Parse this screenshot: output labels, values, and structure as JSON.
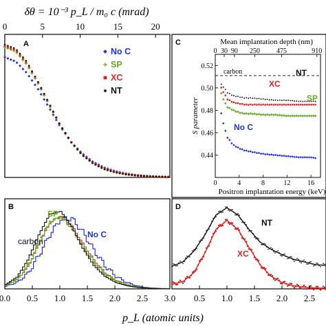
{
  "figure": {
    "top_axis_title": "δθ = 10⁻³ p_L / m₀ c (mrad)",
    "bottom_axis_title": "p_L (atomic units)"
  },
  "colors": {
    "noC": "#2233dd",
    "SP": "#66aa22",
    "XC": "#dd2222",
    "NT": "#111111",
    "carbon": "#111111"
  },
  "chart_data": [
    {
      "panel": "A",
      "type": "scatter",
      "xlabel": "p_L (atomic units)",
      "xlim": [
        0,
        3.0
      ],
      "top_axis_label": "δθ = 10⁻³ p_L / m₀ c (mrad)",
      "top_xlim": [
        0,
        21.9
      ],
      "top_ticks": [
        "0",
        "5",
        "10",
        "15",
        "20"
      ],
      "legend": [
        "No C",
        "SP",
        "XC",
        "NT"
      ],
      "legend_position": "top-right",
      "x": [
        0,
        0.2,
        0.4,
        0.6,
        0.8,
        1.0,
        1.2,
        1.4,
        1.6,
        1.8,
        2.0,
        2.2,
        2.4,
        2.6,
        2.8,
        3.0
      ],
      "series": [
        {
          "name": "No C",
          "values": [
            0.84,
            0.81,
            0.73,
            0.62,
            0.49,
            0.36,
            0.25,
            0.17,
            0.11,
            0.07,
            0.045,
            0.028,
            0.017,
            0.01,
            0.006,
            0.004
          ]
        },
        {
          "name": "SP",
          "values": [
            0.91,
            0.88,
            0.79,
            0.66,
            0.51,
            0.37,
            0.25,
            0.16,
            0.1,
            0.06,
            0.038,
            0.023,
            0.014,
            0.008,
            0.005,
            0.003
          ]
        },
        {
          "name": "XC",
          "values": [
            0.92,
            0.89,
            0.8,
            0.67,
            0.52,
            0.37,
            0.25,
            0.16,
            0.1,
            0.06,
            0.037,
            0.022,
            0.013,
            0.008,
            0.005,
            0.003
          ]
        },
        {
          "name": "NT",
          "values": [
            0.93,
            0.9,
            0.81,
            0.67,
            0.52,
            0.37,
            0.25,
            0.16,
            0.1,
            0.06,
            0.036,
            0.021,
            0.013,
            0.008,
            0.005,
            0.003
          ]
        }
      ]
    },
    {
      "panel": "B",
      "type": "line",
      "xlim": [
        0,
        3.0
      ],
      "xticks": [
        "0.0",
        "0.5",
        "1.0",
        "1.5",
        "2.0",
        "2.5",
        "3.0"
      ],
      "annotations": [
        "carbon",
        "SP",
        "No C"
      ],
      "x": [
        0,
        0.2,
        0.4,
        0.6,
        0.8,
        1.0,
        1.2,
        1.4,
        1.6,
        1.8,
        2.0,
        2.2,
        2.4,
        2.6,
        2.8,
        3.0
      ],
      "series": [
        {
          "name": "carbon",
          "values": [
            0.05,
            0.13,
            0.32,
            0.6,
            0.83,
            0.86,
            0.69,
            0.45,
            0.26,
            0.14,
            0.07,
            0.035,
            0.015,
            0.006,
            0.003,
            0.001
          ]
        },
        {
          "name": "SP",
          "values": [
            0.04,
            0.1,
            0.25,
            0.5,
            0.74,
            0.8,
            0.68,
            0.48,
            0.3,
            0.17,
            0.09,
            0.045,
            0.02,
            0.008,
            0.004,
            0.002
          ]
        },
        {
          "name": "XC",
          "values": [
            0.04,
            0.1,
            0.24,
            0.49,
            0.73,
            0.81,
            0.7,
            0.5,
            0.32,
            0.18,
            0.095,
            0.048,
            0.022,
            0.009,
            0.004,
            0.002
          ]
        },
        {
          "name": "No C",
          "values": [
            0.03,
            0.07,
            0.17,
            0.37,
            0.6,
            0.78,
            0.78,
            0.63,
            0.43,
            0.26,
            0.14,
            0.07,
            0.03,
            0.012,
            0.005,
            0.002
          ]
        }
      ]
    },
    {
      "panel": "C",
      "type": "scatter",
      "xlabel": "Positron implantation energy (keV)",
      "ylabel": "S parameter",
      "top_axis_label": "Mean implantation depth (nm)",
      "xlim": [
        0,
        17.6
      ],
      "ylim": [
        0.42,
        0.53
      ],
      "xticks": [
        "0",
        "4",
        "8",
        "12",
        "16"
      ],
      "yticks": [
        "0.44",
        "0.46",
        "0.48",
        "0.50",
        "0.52"
      ],
      "top_ticks": [
        "0",
        "30",
        "90",
        "250",
        "475",
        "910"
      ],
      "reference_line": {
        "name": "carbon",
        "value": 0.511
      },
      "x": [
        1,
        1.5,
        2,
        3,
        4,
        5,
        6,
        8,
        10,
        12,
        14,
        16,
        17
      ],
      "series": [
        {
          "name": "NT",
          "values": [
            0.503,
            0.5,
            0.496,
            0.493,
            0.492,
            0.491,
            0.491,
            0.49,
            0.489,
            0.489,
            0.488,
            0.488,
            0.488
          ]
        },
        {
          "name": "XC",
          "values": [
            0.5,
            0.495,
            0.49,
            0.487,
            0.486,
            0.485,
            0.485,
            0.485,
            0.485,
            0.485,
            0.485,
            0.485,
            0.485
          ]
        },
        {
          "name": "SP",
          "values": [
            0.495,
            0.488,
            0.483,
            0.48,
            0.478,
            0.477,
            0.477,
            0.476,
            0.476,
            0.475,
            0.475,
            0.475,
            0.475
          ]
        },
        {
          "name": "No C",
          "values": [
            0.477,
            0.465,
            0.456,
            0.449,
            0.446,
            0.444,
            0.443,
            0.441,
            0.44,
            0.439,
            0.438,
            0.438,
            0.437
          ]
        }
      ],
      "annotations": [
        "NT",
        "XC",
        "SP",
        "No C",
        "carbon"
      ]
    },
    {
      "panel": "D",
      "type": "scatter",
      "xlim": [
        0,
        2.8
      ],
      "xticks": [
        "0.5",
        "1.0",
        "1.5",
        "2.0",
        "2.5"
      ],
      "annotations": [
        "NT",
        "XC"
      ],
      "x": [
        0,
        0.2,
        0.4,
        0.6,
        0.8,
        1.0,
        1.2,
        1.4,
        1.6,
        1.8,
        2.0,
        2.2,
        2.4,
        2.6,
        2.8
      ],
      "series": [
        {
          "name": "NT",
          "values": [
            0.25,
            0.3,
            0.42,
            0.6,
            0.82,
            0.9,
            0.82,
            0.66,
            0.52,
            0.44,
            0.38,
            0.33,
            0.3,
            0.27,
            0.26
          ]
        },
        {
          "name": "XC",
          "values": [
            0.05,
            0.08,
            0.18,
            0.4,
            0.66,
            0.76,
            0.66,
            0.46,
            0.27,
            0.14,
            0.07,
            0.035,
            0.018,
            0.01,
            0.006
          ]
        }
      ]
    }
  ]
}
